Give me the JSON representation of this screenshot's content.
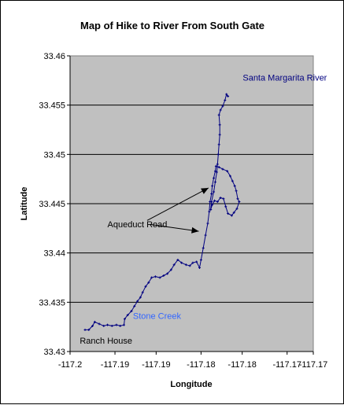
{
  "chart_data": {
    "type": "scatter",
    "title": "Map of Hike to River From South Gate",
    "xlabel": "Longitude",
    "ylabel": "Latitude",
    "xlim": [
      -117.1975,
      -117.165
    ],
    "ylim": [
      33.43,
      33.46
    ],
    "x_tick_values": [
      -117.1975,
      -117.1915,
      -117.186,
      -117.18,
      -117.1745,
      -117.1685,
      -117.165
    ],
    "x_tick_labels": [
      "-117.2",
      "-117.19",
      "-117.19",
      "-117.18",
      "-117.18",
      "-117.17",
      "-117.17"
    ],
    "y_tick_values": [
      33.43,
      33.435,
      33.44,
      33.445,
      33.45,
      33.455,
      33.46
    ],
    "y_tick_labels": [
      "33.43",
      "33.435",
      "33.44",
      "33.445",
      "33.45",
      "33.455",
      "33.46"
    ],
    "grid": true,
    "plot_background": "#c0c0c0",
    "series": [
      {
        "color": "#000080",
        "points": [
          [
            -117.1955,
            33.4322
          ],
          [
            -117.195,
            33.4322
          ],
          [
            -117.1945,
            33.4326
          ],
          [
            -117.1942,
            33.433
          ],
          [
            -117.1936,
            33.4328
          ],
          [
            -117.193,
            33.4326
          ],
          [
            -117.1925,
            33.4327
          ],
          [
            -117.1919,
            33.4326
          ],
          [
            -117.1913,
            33.4327
          ],
          [
            -117.1908,
            33.4326
          ],
          [
            -117.1903,
            33.4327
          ],
          [
            -117.1902,
            33.4333
          ],
          [
            -117.1898,
            33.4337
          ],
          [
            -117.1893,
            33.4341
          ],
          [
            -117.1889,
            33.4346
          ],
          [
            -117.1885,
            33.4351
          ],
          [
            -117.1881,
            33.4355
          ],
          [
            -117.1878,
            33.436
          ],
          [
            -117.1874,
            33.4366
          ],
          [
            -117.187,
            33.437
          ],
          [
            -117.1866,
            33.4375
          ],
          [
            -117.1861,
            33.4376
          ],
          [
            -117.1855,
            33.4375
          ],
          [
            -117.185,
            33.4377
          ],
          [
            -117.1845,
            33.4379
          ],
          [
            -117.184,
            33.4383
          ],
          [
            -117.1836,
            33.4388
          ],
          [
            -117.1831,
            33.4393
          ],
          [
            -117.1826,
            33.439
          ],
          [
            -117.182,
            33.4388
          ],
          [
            -117.1815,
            33.4387
          ],
          [
            -117.1811,
            33.439
          ],
          [
            -117.1806,
            33.4391
          ],
          [
            -117.1802,
            33.4385
          ],
          [
            -117.18,
            33.4393
          ],
          [
            -117.1797,
            33.4405
          ],
          [
            -117.1794,
            33.4418
          ],
          [
            -117.1791,
            33.443
          ],
          [
            -117.1789,
            33.4442
          ],
          [
            -117.1788,
            33.4452
          ],
          [
            -117.1786,
            33.446
          ],
          [
            -117.1785,
            33.4468
          ],
          [
            -117.1783,
            33.4476
          ],
          [
            -117.1781,
            33.4483
          ],
          [
            -117.178,
            33.4488
          ],
          [
            -117.1776,
            33.4487
          ],
          [
            -117.1771,
            33.4485
          ],
          [
            -117.1765,
            33.4483
          ],
          [
            -117.1761,
            33.4478
          ],
          [
            -117.1758,
            33.4473
          ],
          [
            -117.1755,
            33.4468
          ],
          [
            -117.1753,
            33.4463
          ],
          [
            -117.1751,
            33.4455
          ],
          [
            -117.1749,
            33.4452
          ],
          [
            -117.1752,
            33.4445
          ],
          [
            -117.1756,
            33.4441
          ],
          [
            -117.1759,
            33.4438
          ],
          [
            -117.1764,
            33.444
          ],
          [
            -117.1767,
            33.4447
          ],
          [
            -117.177,
            33.4455
          ],
          [
            -117.1774,
            33.4456
          ],
          [
            -117.1778,
            33.4452
          ],
          [
            -117.1782,
            33.4453
          ],
          [
            -117.1785,
            33.4449
          ],
          [
            -117.1787,
            33.4444
          ],
          [
            -117.1786,
            33.4452
          ],
          [
            -117.1783,
            33.4462
          ],
          [
            -117.1781,
            33.4472
          ],
          [
            -117.1779,
            33.4482
          ],
          [
            -117.1778,
            33.449
          ],
          [
            -117.1777,
            33.45
          ],
          [
            -117.1776,
            33.451
          ],
          [
            -117.1775,
            33.452
          ],
          [
            -117.1775,
            33.453
          ],
          [
            -117.1776,
            33.454
          ],
          [
            -117.1774,
            33.4545
          ],
          [
            -117.1771,
            33.4549
          ],
          [
            -117.1768,
            33.4555
          ],
          [
            -117.1766,
            33.4561
          ],
          [
            -117.1764,
            33.4559
          ]
        ]
      }
    ],
    "annotations": [
      {
        "text": "Santa Margarita River",
        "x": -117.1688,
        "y": 33.4575,
        "color": "#000080",
        "anchor": "middle"
      },
      {
        "text": "Stone Creek",
        "x": -117.1891,
        "y": 33.4333,
        "color": "#3366ff",
        "anchor": "start"
      },
      {
        "text": "Ranch House",
        "x": -117.1962,
        "y": 33.4308,
        "color": "#000000",
        "anchor": "start"
      },
      {
        "text": "Aqueduct Road",
        "x": -117.1925,
        "y": 33.4426,
        "color": "#000000",
        "anchor": "start"
      }
    ],
    "arrows": [
      {
        "from": [
          -117.1872,
          33.4433
        ],
        "to": [
          -117.179,
          33.4466
        ]
      },
      {
        "from": [
          -117.1868,
          33.4429
        ],
        "to": [
          -117.1803,
          33.4422
        ]
      }
    ]
  }
}
